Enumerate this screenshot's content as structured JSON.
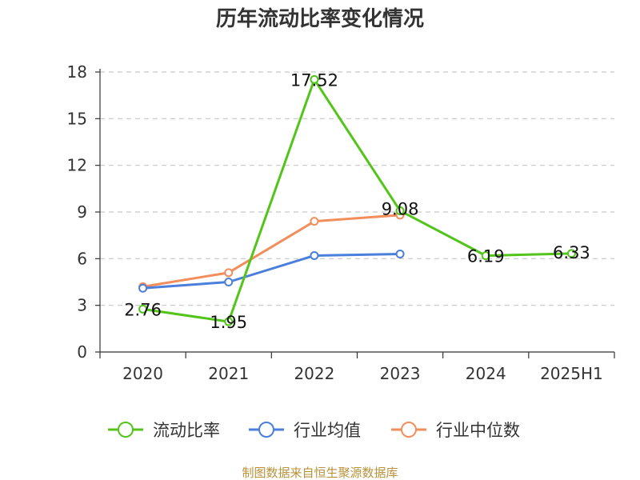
{
  "chart_data": {
    "type": "line",
    "title": "历年流动比率变化情况",
    "categories": [
      "2020",
      "2021",
      "2022",
      "2023",
      "2024",
      "2025H1"
    ],
    "ylim": [
      0,
      18
    ],
    "yticks": [
      0,
      3,
      6,
      9,
      12,
      15,
      18
    ],
    "grid": true,
    "legend_position": "bottom",
    "series": [
      {
        "name": "流动比率",
        "color": "#52c41a",
        "values": [
          2.76,
          1.95,
          17.52,
          9.08,
          6.19,
          6.33
        ],
        "labels": [
          "2.76",
          "1.95",
          "17.52",
          "9.08",
          "6.19",
          "6.33"
        ]
      },
      {
        "name": "行业均值",
        "color": "#4a7fdc",
        "values": [
          4.1,
          4.5,
          6.2,
          6.3,
          null,
          null
        ],
        "labels": []
      },
      {
        "name": "行业中位数",
        "color": "#f28e5c",
        "values": [
          4.2,
          5.1,
          8.4,
          8.8,
          null,
          null
        ],
        "labels": []
      }
    ]
  },
  "source": "制图数据来自恒生聚源数据库"
}
